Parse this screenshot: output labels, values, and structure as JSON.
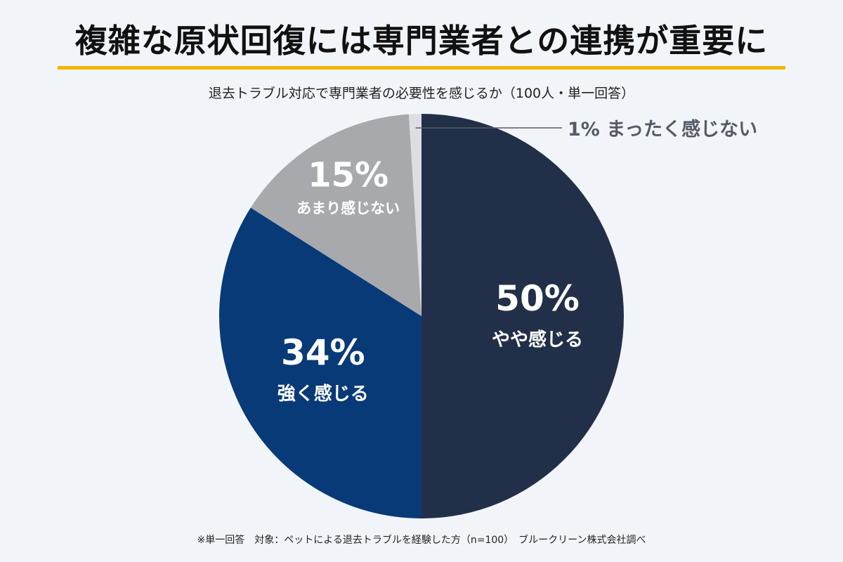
{
  "title": "複雑な原状回復には専門業者との連携が重要に",
  "colors": {
    "accent_rule": "#f2b705",
    "background": "#f1f5fa"
  },
  "chart_data": {
    "type": "pie",
    "title": "退去トラブル対応で専門業者の必要性を感じるか（100人・単一回答）",
    "slices": [
      {
        "label": "やや感じる",
        "value": 50,
        "value_label": "50%",
        "color": "#222f49"
      },
      {
        "label": "強く感じる",
        "value": 34,
        "value_label": "34%",
        "color": "#083a78"
      },
      {
        "label": "あまり感じない",
        "value": 15,
        "value_label": "15%",
        "color": "#a7a9ac"
      },
      {
        "label": "まったく感じない",
        "value": 1,
        "value_label": "1%",
        "color": "#dcdee4"
      }
    ]
  },
  "footnote": "※単一回答　対象：ペットによる退去トラブルを経験した方（n=100）　ブルークリーン株式会社調べ"
}
